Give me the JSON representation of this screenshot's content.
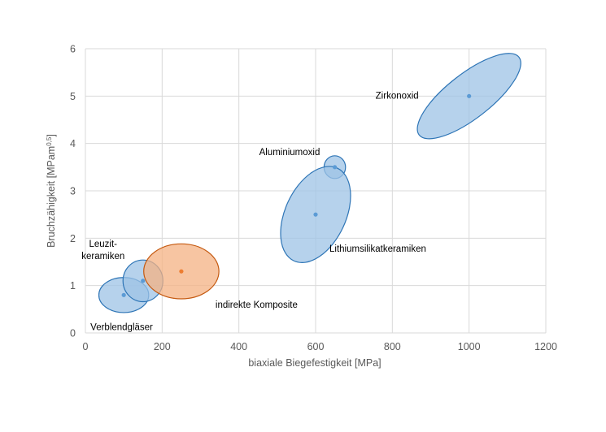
{
  "chart_data": {
    "type": "scatter",
    "title": "",
    "xlabel": "biaxiale Biegefestigkeit [MPa]",
    "ylabel_main": "Bruchzähigkeit [MPam",
    "ylabel_sup": "0,5",
    "ylabel_end": "]",
    "xlim": [
      0,
      1200
    ],
    "ylim": [
      0,
      6
    ],
    "x_ticks": [
      "0",
      "200",
      "400",
      "600",
      "800",
      "1000",
      "1200"
    ],
    "y_ticks": [
      "0",
      "1",
      "2",
      "3",
      "4",
      "5",
      "6"
    ],
    "grid": true,
    "legend": "none",
    "series": [
      {
        "label_lines": [
          "Verblendgläser"
        ],
        "x": 100,
        "y": 0.8,
        "rx": 65,
        "ry": 0.37,
        "angle": 0,
        "color": "blue"
      },
      {
        "label_lines": [
          "Leuzit-",
          "keramiken"
        ],
        "x": 150,
        "y": 1.1,
        "rx": 52,
        "ry": 0.44,
        "angle": 0,
        "color": "blue"
      },
      {
        "label_lines": [
          "indirekte Komposite"
        ],
        "x": 250,
        "y": 1.3,
        "rx": 98,
        "ry": 0.58,
        "angle": 0,
        "color": "orange"
      },
      {
        "label_lines": [
          "Aluminiumoxid"
        ],
        "x": 650,
        "y": 3.5,
        "rx": 28,
        "ry": 0.24,
        "angle": 0,
        "color": "blue"
      },
      {
        "label_lines": [
          "Lithiumsilikatkeramiken"
        ],
        "x": 600,
        "y": 2.5,
        "rx": 79,
        "ry": 1.08,
        "angle": 25,
        "color": "blue"
      },
      {
        "label_lines": [
          "Zirkonoxid"
        ],
        "x": 1000,
        "y": 5.0,
        "rx": 165,
        "ry": 0.47,
        "angle": -38,
        "color": "blue"
      }
    ]
  },
  "colors": {
    "blue_fill": "#9dc3e6",
    "blue_stroke": "#2e75b6",
    "blue_point": "#5b9bd5",
    "orange_fill": "#f4b183",
    "orange_stroke": "#c55a11",
    "orange_point": "#ed7d31",
    "grid": "#d9d9d9",
    "axis_text": "#595959",
    "label_text": "#000000"
  }
}
